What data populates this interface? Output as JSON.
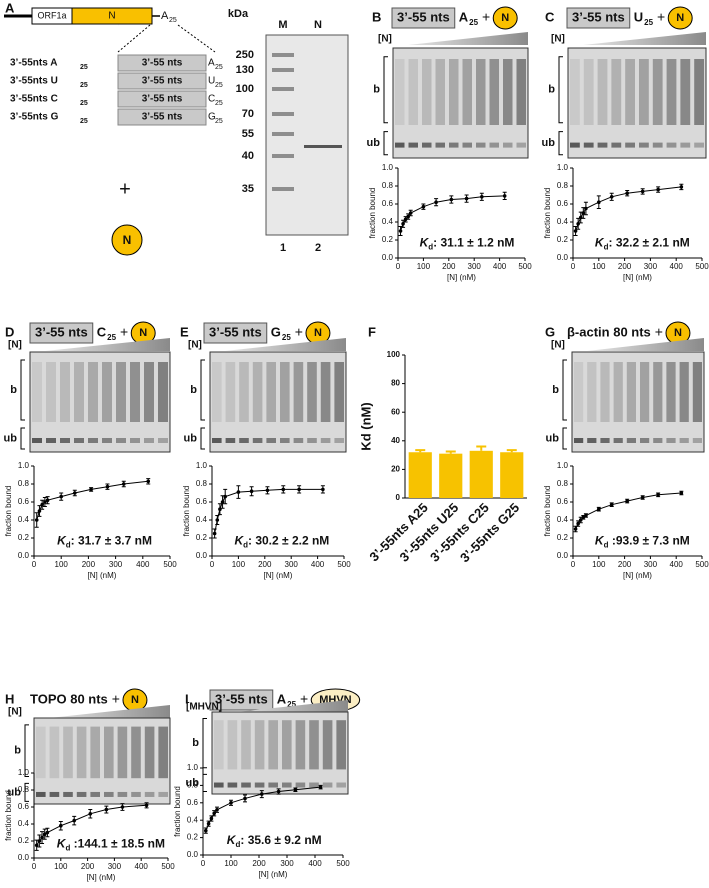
{
  "panel_labels": [
    "A",
    "B",
    "C",
    "D",
    "E",
    "F",
    "G",
    "H",
    "I"
  ],
  "panel_a": {
    "orf": "ORF1a",
    "gene": "N",
    "tail": "A",
    "tail_sub": "25",
    "constructs": [
      {
        "name": "3’-55nts A",
        "name_sub": "25",
        "box": "3’-55 nts",
        "tail": "A",
        "tail_sub": "25"
      },
      {
        "name": "3’-55nts U",
        "name_sub": "25",
        "box": "3’-55 nts",
        "tail": "U",
        "tail_sub": "25"
      },
      {
        "name": "3’-55nts C",
        "name_sub": "25",
        "box": "3’-55 nts",
        "tail": "C",
        "tail_sub": "25"
      },
      {
        "name": "3’-55nts G",
        "name_sub": "25",
        "box": "3’-55 nts",
        "tail": "G",
        "tail_sub": "25"
      }
    ],
    "plus": "+",
    "protein": "N",
    "gel": {
      "unit": "kDa",
      "markers": [
        "250",
        "130",
        "100",
        "70",
        "55",
        "40",
        "35"
      ],
      "lanes": [
        "M",
        "N"
      ],
      "lane_numbers": [
        "1",
        "2"
      ]
    }
  },
  "headers": [
    {
      "box": "3’-55 nts",
      "tail": "A",
      "sub": "25",
      "plus": "+",
      "protein": "N",
      "conc": "[N]",
      "bound": "b",
      "unbound": "ub"
    },
    {
      "box": "3’-55 nts",
      "tail": "U",
      "sub": "25",
      "plus": "+",
      "protein": "N",
      "conc": "[N]",
      "bound": "b",
      "unbound": "ub"
    },
    {
      "box": "3’-55 nts",
      "tail": "C",
      "sub": "25",
      "plus": "+",
      "protein": "N",
      "conc": "[N]",
      "bound": "b",
      "unbound": "ub"
    },
    {
      "box": "3’-55 nts",
      "tail": "G",
      "sub": "25",
      "plus": "+",
      "protein": "N",
      "conc": "[N]",
      "bound": "b",
      "unbound": "ub"
    },
    {
      "name": "β-actin 80 nts",
      "plus": "+",
      "protein": "N",
      "conc": "[N]",
      "bound": "b",
      "unbound": "ub"
    },
    {
      "name": "TOPO 80 nts",
      "plus": "+",
      "protein": "N",
      "conc": "[N]",
      "bound": "b",
      "unbound": "ub"
    },
    {
      "box": "3’-55 nts",
      "tail": "A",
      "sub": "25",
      "plus": "+",
      "protein": "MHVN",
      "conc": "[MHVN]",
      "bound": "b",
      "unbound": "ub"
    }
  ],
  "chart_data": [
    {
      "type": "line",
      "x": [
        10,
        20,
        30,
        40,
        50,
        100,
        150,
        210,
        270,
        330,
        420
      ],
      "values": [
        0.3,
        0.38,
        0.43,
        0.46,
        0.5,
        0.57,
        0.62,
        0.65,
        0.66,
        0.68,
        0.69
      ],
      "errors": [
        0.05,
        0.04,
        0.03,
        0.03,
        0.03,
        0.03,
        0.04,
        0.04,
        0.04,
        0.04,
        0.04
      ],
      "xlim": [
        0,
        500
      ],
      "xticks": [
        0,
        100,
        200,
        300,
        400,
        500
      ],
      "ylim": [
        0,
        1
      ],
      "yticks": [
        {
          "value": 0,
          "label": "0.0"
        },
        0.2,
        0.4,
        0.6,
        0.8,
        {
          "value": 1,
          "label": "1.0"
        }
      ],
      "xlabel": "[N] (nM)",
      "ylabel": "fraction bound",
      "annotation": [
        "K",
        "d",
        ": 31.1 ± 1.2 nM"
      ],
      "color": "#000000"
    },
    {
      "type": "line",
      "x": [
        10,
        20,
        30,
        40,
        50,
        100,
        150,
        210,
        270,
        330,
        420
      ],
      "values": [
        0.3,
        0.38,
        0.45,
        0.5,
        0.55,
        0.62,
        0.68,
        0.72,
        0.74,
        0.76,
        0.79
      ],
      "errors": [
        0.05,
        0.06,
        0.06,
        0.06,
        0.07,
        0.07,
        0.04,
        0.03,
        0.03,
        0.03,
        0.03
      ],
      "xlim": [
        0,
        500
      ],
      "xticks": [
        0,
        100,
        200,
        300,
        400,
        500
      ],
      "ylim": [
        0,
        1
      ],
      "yticks": [
        {
          "value": 0,
          "label": "0.0"
        },
        0.2,
        0.4,
        0.6,
        0.8,
        {
          "value": 1,
          "label": "1.0"
        }
      ],
      "xlabel": "[N] (nM)",
      "ylabel": "fraction bound",
      "annotation": [
        "K",
        "d",
        ": 32.2 ± 2.1 nM"
      ],
      "color": "#000000"
    },
    {
      "type": "line",
      "x": [
        10,
        20,
        30,
        40,
        50,
        100,
        150,
        210,
        270,
        330,
        420
      ],
      "values": [
        0.4,
        0.5,
        0.57,
        0.6,
        0.62,
        0.66,
        0.7,
        0.74,
        0.77,
        0.8,
        0.83
      ],
      "errors": [
        0.08,
        0.06,
        0.05,
        0.05,
        0.04,
        0.04,
        0.03,
        0.02,
        0.03,
        0.03,
        0.03
      ],
      "xlim": [
        0,
        500
      ],
      "xticks": [
        0,
        100,
        200,
        300,
        400,
        500
      ],
      "ylim": [
        0,
        1
      ],
      "yticks": [
        {
          "value": 0,
          "label": "0.0"
        },
        0.2,
        0.4,
        0.6,
        0.8,
        {
          "value": 1,
          "label": "1.0"
        }
      ],
      "xlabel": "[N] (nM)",
      "ylabel": "fraction bound",
      "annotation": [
        "K",
        "d",
        ": 31.7 ± 3.7 nM"
      ],
      "color": "#000000"
    },
    {
      "type": "line",
      "x": [
        10,
        20,
        30,
        40,
        50,
        100,
        150,
        210,
        270,
        330,
        420
      ],
      "values": [
        0.25,
        0.4,
        0.52,
        0.6,
        0.66,
        0.71,
        0.72,
        0.73,
        0.74,
        0.74,
        0.74
      ],
      "errors": [
        0.05,
        0.05,
        0.06,
        0.07,
        0.08,
        0.07,
        0.05,
        0.04,
        0.04,
        0.04,
        0.04
      ],
      "xlim": [
        0,
        500
      ],
      "xticks": [
        0,
        100,
        200,
        300,
        400,
        500
      ],
      "ylim": [
        0,
        1
      ],
      "yticks": [
        {
          "value": 0,
          "label": "0.0"
        },
        0.2,
        0.4,
        0.6,
        0.8,
        {
          "value": 1,
          "label": "1.0"
        }
      ],
      "xlabel": "[N] (nM)",
      "ylabel": "fraction bound",
      "annotation": [
        "K",
        "d",
        ": 30.2 ± 2.2 nM"
      ],
      "color": "#000000"
    },
    {
      "type": "bar",
      "categories": [
        "3’-55nts A25",
        "3’-55nts U25",
        "3’-55nts C25",
        "3’-55nts G25"
      ],
      "values": [
        32,
        31,
        33,
        32
      ],
      "errors": [
        1.5,
        1.5,
        3,
        1.5
      ],
      "ylim": [
        0,
        100
      ],
      "yticks": [
        0,
        20,
        40,
        60,
        80,
        100
      ],
      "ylabel": "Kd (nM)",
      "color": "#f7c200"
    },
    {
      "type": "line",
      "x": [
        10,
        20,
        30,
        40,
        50,
        100,
        150,
        210,
        270,
        330,
        420
      ],
      "values": [
        0.3,
        0.36,
        0.4,
        0.43,
        0.45,
        0.52,
        0.57,
        0.61,
        0.65,
        0.68,
        0.7
      ],
      "errors": [
        0.03,
        0.03,
        0.03,
        0.02,
        0.02,
        0.02,
        0.02,
        0.02,
        0.02,
        0.02,
        0.02
      ],
      "xlim": [
        0,
        500
      ],
      "xticks": [
        0,
        100,
        200,
        300,
        400,
        500
      ],
      "ylim": [
        0,
        1
      ],
      "yticks": [
        {
          "value": 0,
          "label": "0.0"
        },
        0.2,
        0.4,
        0.6,
        0.8,
        {
          "value": 1,
          "label": "1.0"
        }
      ],
      "xlabel": "[N] (nM)",
      "ylabel": "fraction bound",
      "annotation": [
        "K",
        "d",
        " :93.9 ± 7.3 nM"
      ],
      "color": "#000000"
    },
    {
      "type": "line",
      "x": [
        10,
        20,
        30,
        40,
        50,
        100,
        150,
        210,
        270,
        330,
        420
      ],
      "values": [
        0.15,
        0.2,
        0.24,
        0.28,
        0.3,
        0.38,
        0.44,
        0.52,
        0.57,
        0.6,
        0.62
      ],
      "errors": [
        0.06,
        0.07,
        0.07,
        0.06,
        0.05,
        0.05,
        0.05,
        0.05,
        0.04,
        0.04,
        0.03
      ],
      "xlim": [
        0,
        500
      ],
      "xticks": [
        0,
        100,
        200,
        300,
        400,
        500
      ],
      "ylim": [
        0,
        1
      ],
      "yticks": [
        {
          "value": 0,
          "label": "0.0"
        },
        0.2,
        0.4,
        0.6,
        0.8,
        {
          "value": 1,
          "label": "1.0"
        }
      ],
      "xlabel": "[N] (nM)",
      "ylabel": "fraction bound",
      "annotation": [
        "K",
        "d",
        " :144.1 ± 18.5 nM"
      ],
      "color": "#000000"
    },
    {
      "type": "line",
      "x": [
        10,
        20,
        30,
        40,
        50,
        100,
        150,
        210,
        270,
        330,
        420
      ],
      "values": [
        0.28,
        0.36,
        0.42,
        0.48,
        0.52,
        0.6,
        0.65,
        0.7,
        0.73,
        0.75,
        0.78
      ],
      "errors": [
        0.03,
        0.03,
        0.03,
        0.03,
        0.03,
        0.03,
        0.04,
        0.04,
        0.03,
        0.02,
        0.02
      ],
      "xlim": [
        0,
        500
      ],
      "xticks": [
        0,
        100,
        200,
        300,
        400,
        500
      ],
      "ylim": [
        0,
        1
      ],
      "yticks": [
        {
          "value": 0,
          "label": "0.0"
        },
        0.2,
        0.4,
        0.6,
        0.8,
        {
          "value": 1,
          "label": "1.0"
        }
      ],
      "xlabel": "[N] (nM)",
      "ylabel": "fraction bound",
      "annotation": [
        "K",
        "d",
        ": 35.6 ± 9.2 nM"
      ],
      "color": "#000000"
    }
  ]
}
